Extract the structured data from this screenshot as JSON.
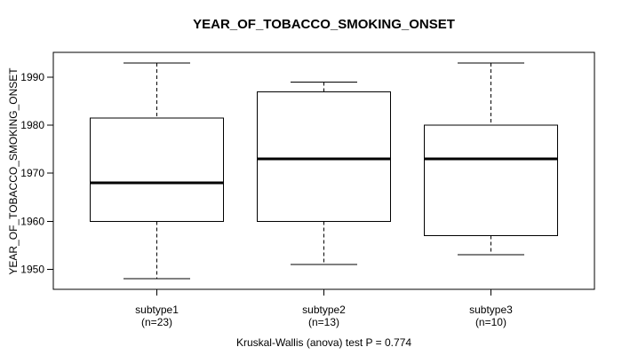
{
  "page": {
    "background_color": "#ffffff",
    "foreground_color": "#000000"
  },
  "chart_data": {
    "type": "boxplot",
    "title": "YEAR_OF_TOBACCO_SMOKING_ONSET",
    "ylabel": "YEAR_OF_TOBACCO_SMOKING_ONSET",
    "xlabel": "",
    "footer": "Kruskal-Wallis (anova) test P = 0.774",
    "p_value": 0.774,
    "y_ticks": [
      1950,
      1960,
      1970,
      1980,
      1990
    ],
    "y_range": [
      1945.8,
      1995.2
    ],
    "x_range": [
      0.38,
      3.62
    ],
    "box_half_width": 0.4,
    "cap_half_width": 0.2,
    "grid": false,
    "legend": "none",
    "groups": [
      {
        "label": "subtype1",
        "n": 23,
        "n_label": "(n=23)",
        "x": 1,
        "whisker_low": 1948,
        "q1": 1960,
        "median": 1968,
        "q3": 1981.5,
        "whisker_high": 1993
      },
      {
        "label": "subtype2",
        "n": 13,
        "n_label": "(n=13)",
        "x": 2,
        "whisker_low": 1951,
        "q1": 1960,
        "median": 1973,
        "q3": 1987,
        "whisker_high": 1989
      },
      {
        "label": "subtype3",
        "n": 10,
        "n_label": "(n=10)",
        "x": 3,
        "whisker_low": 1953,
        "q1": 1957,
        "median": 1973,
        "q3": 1980,
        "whisker_high": 1993
      }
    ]
  }
}
